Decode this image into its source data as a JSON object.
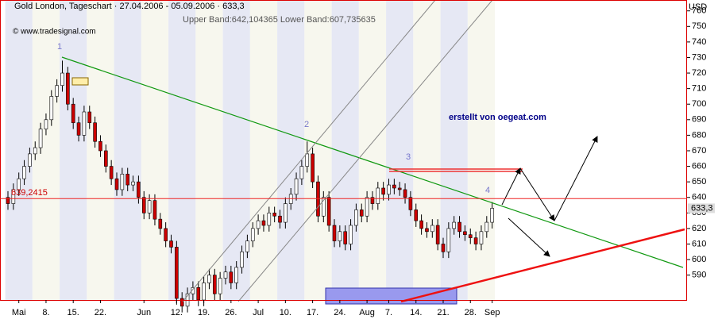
{
  "chart_data": {
    "type": "candlestick",
    "title": "Gold London, Tageschart · 27.04.2006 - 05.09.2006 · 633,3",
    "subtitle": "Upper Band:642,104365 Lower Band:607,735635",
    "copyright": "© www.tradesignal.com",
    "axis_unit": "USD",
    "annotation": "erstellt von oegeat.com",
    "wave_labels": [
      "1",
      "2",
      "3",
      "4"
    ],
    "level": {
      "value": 639.2415,
      "label": "639,2415"
    },
    "last_label": "633,3",
    "categories": [
      null,
      null,
      "Mai",
      null,
      null,
      null,
      null,
      "8.",
      null,
      null,
      null,
      null,
      "15.",
      null,
      null,
      null,
      null,
      "22.",
      null,
      null,
      null,
      null,
      null,
      null,
      null,
      "Jun",
      null,
      null,
      null,
      null,
      null,
      "12.",
      null,
      null,
      null,
      null,
      "19.",
      null,
      null,
      null,
      null,
      "26.",
      null,
      null,
      null,
      null,
      "Jul",
      null,
      null,
      null,
      null,
      "10.",
      null,
      null,
      null,
      null,
      "17.",
      null,
      null,
      null,
      null,
      "24.",
      null,
      null,
      null,
      null,
      "Aug",
      null,
      null,
      null,
      "7.",
      null,
      null,
      null,
      null,
      "14.",
      null,
      null,
      null,
      null,
      "21.",
      null,
      null,
      null,
      null,
      "28.",
      null,
      null,
      null,
      "Sep"
    ],
    "open": [
      640,
      636,
      645,
      652,
      660,
      668,
      672,
      684,
      690,
      705,
      712,
      720,
      700,
      688,
      680,
      695,
      688,
      676,
      670,
      660,
      652,
      645,
      655,
      648,
      650,
      640,
      630,
      638,
      626,
      620,
      612,
      608,
      575,
      570,
      578,
      582,
      574,
      585,
      590,
      578,
      588,
      592,
      585,
      595,
      605,
      612,
      620,
      625,
      622,
      630,
      628,
      624,
      636,
      642,
      652,
      660,
      668,
      650,
      628,
      640,
      622,
      612,
      618,
      610,
      622,
      632,
      628,
      640,
      636,
      646,
      642,
      648,
      646,
      645,
      640,
      632,
      625,
      620,
      618,
      622,
      610,
      605,
      620,
      624,
      618,
      616,
      614,
      610,
      618,
      624
    ],
    "high": [
      644,
      649,
      656,
      664,
      672,
      676,
      688,
      694,
      709,
      716,
      728,
      724,
      704,
      692,
      699,
      699,
      692,
      680,
      674,
      664,
      656,
      659,
      659,
      654,
      654,
      644,
      642,
      642,
      630,
      624,
      616,
      612,
      579,
      582,
      586,
      586,
      589,
      594,
      594,
      592,
      596,
      596,
      599,
      609,
      616,
      624,
      629,
      629,
      634,
      634,
      632,
      640,
      646,
      656,
      664,
      676,
      672,
      654,
      644,
      644,
      626,
      622,
      622,
      626,
      636,
      636,
      644,
      644,
      650,
      650,
      652,
      652,
      650,
      649,
      644,
      636,
      629,
      624,
      626,
      626,
      614,
      624,
      628,
      628,
      622,
      620,
      618,
      622,
      628,
      637
    ],
    "low": [
      632,
      632,
      641,
      648,
      656,
      664,
      668,
      680,
      686,
      701,
      708,
      696,
      684,
      676,
      676,
      684,
      672,
      666,
      656,
      648,
      641,
      641,
      644,
      644,
      636,
      626,
      626,
      622,
      616,
      608,
      604,
      571,
      566,
      566,
      574,
      570,
      570,
      581,
      574,
      574,
      584,
      581,
      581,
      591,
      601,
      608,
      616,
      618,
      618,
      624,
      620,
      620,
      632,
      638,
      648,
      656,
      646,
      624,
      624,
      618,
      608,
      608,
      606,
      606,
      618,
      624,
      624,
      632,
      632,
      638,
      638,
      642,
      641,
      636,
      628,
      621,
      616,
      614,
      614,
      606,
      601,
      601,
      616,
      614,
      612,
      610,
      606,
      606,
      614,
      620
    ],
    "close": [
      636,
      645,
      652,
      660,
      668,
      672,
      684,
      690,
      705,
      712,
      720,
      700,
      688,
      680,
      695,
      688,
      676,
      670,
      660,
      652,
      645,
      655,
      648,
      650,
      640,
      630,
      638,
      626,
      620,
      612,
      608,
      575,
      570,
      578,
      582,
      574,
      585,
      590,
      578,
      588,
      592,
      585,
      595,
      605,
      612,
      620,
      625,
      622,
      630,
      628,
      624,
      636,
      642,
      652,
      660,
      668,
      650,
      628,
      640,
      622,
      612,
      618,
      610,
      622,
      632,
      628,
      640,
      636,
      646,
      642,
      648,
      646,
      645,
      640,
      632,
      625,
      620,
      618,
      622,
      610,
      605,
      620,
      624,
      618,
      616,
      614,
      610,
      618,
      624,
      633
    ],
    "up_color": "#ffffff",
    "down_color": "#cc0000",
    "ylim": [
      574,
      767
    ],
    "yticks": [
      590,
      600,
      610,
      620,
      630,
      640,
      650,
      660,
      670,
      680,
      690,
      700,
      710,
      720,
      730,
      740,
      750,
      760
    ]
  }
}
